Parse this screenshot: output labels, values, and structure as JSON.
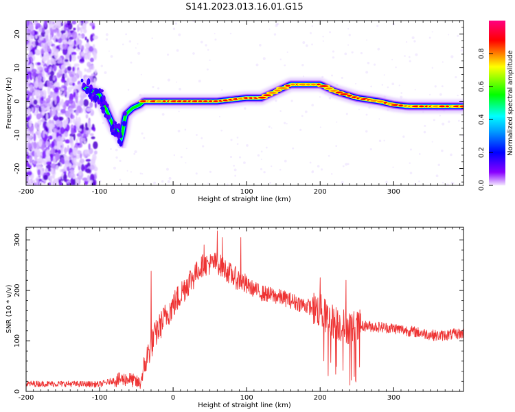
{
  "title": "S141.2023.013.16.01.G15",
  "chart_data": [
    {
      "type": "heatmap",
      "title": "S141.2023.013.16.01.G15",
      "xlabel": "Height of straight line (km)",
      "ylabel": "Frequency (Hz)",
      "xlim": [
        -200,
        395
      ],
      "ylim": [
        -25,
        24
      ],
      "xticks": [
        -200,
        -100,
        0,
        100,
        200,
        300
      ],
      "yticks": [
        -20,
        -10,
        0,
        10,
        20
      ],
      "colorbar": {
        "label": "Normalized spectral amplitude",
        "ticks": [
          0.0,
          0.2,
          0.4,
          0.6,
          0.8
        ],
        "tick_labels": [
          "0.0",
          "0.2",
          "0.4",
          "0.6",
          "0.8"
        ],
        "range": [
          0,
          1
        ],
        "colors": [
          "#f4e8ff",
          "#8800ff",
          "#0000ff",
          "#00ffff",
          "#00ff00",
          "#ffff00",
          "#ff0000",
          "#ff0080"
        ]
      },
      "ridge": {
        "x": [
          -120,
          -100,
          -90,
          -80,
          -75,
          -70,
          -65,
          -55,
          -45,
          -40,
          -30,
          0,
          30,
          60,
          100,
          120,
          140,
          160,
          180,
          200,
          220,
          250,
          280,
          300,
          320,
          350,
          395
        ],
        "y": [
          4,
          2,
          -3,
          -8,
          -9,
          -11,
          -4,
          -2,
          -1,
          0,
          0,
          0,
          0,
          0,
          1,
          1,
          3,
          5,
          5,
          5,
          3,
          1,
          0,
          -1,
          -1.5,
          -1.5,
          -1.5
        ]
      },
      "noise_region_x": [
        -200,
        -110
      ]
    },
    {
      "type": "line",
      "xlabel": "Height of straight line (km)",
      "ylabel": "SNR (10 * v/v)",
      "xlim": [
        -200,
        395
      ],
      "ylim": [
        0,
        325
      ],
      "xticks": [
        -200,
        -100,
        0,
        100,
        200,
        300
      ],
      "yticks": [
        0,
        100,
        200,
        300
      ],
      "color": "#ee3333",
      "series": [
        {
          "x": [
            -200,
            -150,
            -100,
            -80,
            -60,
            -45,
            -35,
            -25,
            -10,
            0,
            20,
            40,
            60,
            80,
            100,
            120,
            150,
            180,
            200,
            210,
            230,
            250,
            260,
            300,
            340,
            360,
            395
          ],
          "values": [
            15,
            15,
            14,
            22,
            25,
            15,
            70,
            110,
            150,
            170,
            215,
            250,
            255,
            230,
            210,
            195,
            185,
            170,
            160,
            145,
            130,
            125,
            130,
            125,
            115,
            110,
            115
          ]
        }
      ],
      "spikes": [
        {
          "x": -30,
          "y": 238
        },
        {
          "x": 42,
          "y": 290
        },
        {
          "x": 60,
          "y": 318
        },
        {
          "x": 67,
          "y": 305
        },
        {
          "x": 92,
          "y": 305
        },
        {
          "x": 200,
          "y": 225
        },
        {
          "x": 235,
          "y": 220
        }
      ]
    }
  ]
}
